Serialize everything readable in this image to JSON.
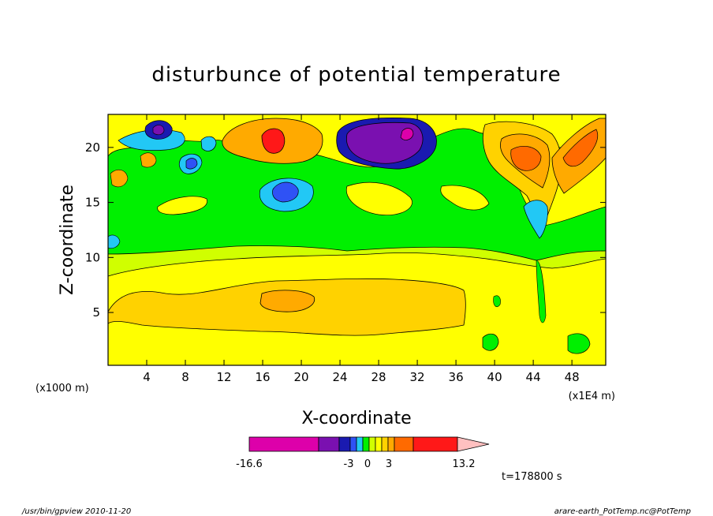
{
  "chart_data": {
    "type": "heatmap",
    "title": "disturbunce of potential temperature",
    "xlabel": "X-coordinate",
    "ylabel": "Z-coordinate",
    "x_unit_note": "(x1E4 m)",
    "y_unit_note": "(x1000 m)",
    "xlim": [
      0,
      51.5
    ],
    "ylim": [
      0.2,
      23
    ],
    "x_ticks": [
      4,
      8,
      12,
      16,
      20,
      24,
      28,
      32,
      36,
      40,
      44,
      48
    ],
    "x_tick_labels": [
      "4",
      "8",
      "12",
      "16",
      "20",
      "24",
      "28",
      "32",
      "36",
      "40",
      "44",
      "48"
    ],
    "y_ticks": [
      5,
      10,
      15,
      20
    ],
    "y_tick_labels": [
      "5",
      "10",
      "15",
      "20"
    ],
    "colorbar": {
      "min_label": "-16.6",
      "max_label": "13.2",
      "mid_labels": [
        "-3",
        "0",
        "3"
      ],
      "min": -16.6,
      "max": 13.2,
      "colors": [
        "#dd00aa",
        "#7a10b0",
        "#1a1ab0",
        "#2f52f5",
        "#22c8f5",
        "#00f000",
        "#d0ff00",
        "#ffff00",
        "#ffd200",
        "#ffaa00",
        "#ff6a00",
        "#ff1818",
        "#ff7a7a",
        "#ffc0c0"
      ]
    },
    "timestamp": "t=178800 s",
    "regions": [
      {
        "name": "bottom-yellow",
        "color": "#ffff00"
      },
      {
        "name": "band-8-10",
        "color": "#d0ff00"
      },
      {
        "name": "core-5",
        "color": "#ffd200"
      },
      {
        "name": "max-17-6",
        "color": "#ffaa00"
      },
      {
        "name": "upper-green",
        "color": "#00f000"
      },
      {
        "name": "purple-27-21",
        "color": "#7a10b0"
      },
      {
        "name": "red-17-20",
        "color": "#ff1818"
      },
      {
        "name": "orange-44-19",
        "color": "#ff6a00"
      }
    ]
  },
  "footer": {
    "left": "/usr/bin/gpview   2010-11-20",
    "right": "arare-earth_PotTemp.nc@PotTemp"
  }
}
